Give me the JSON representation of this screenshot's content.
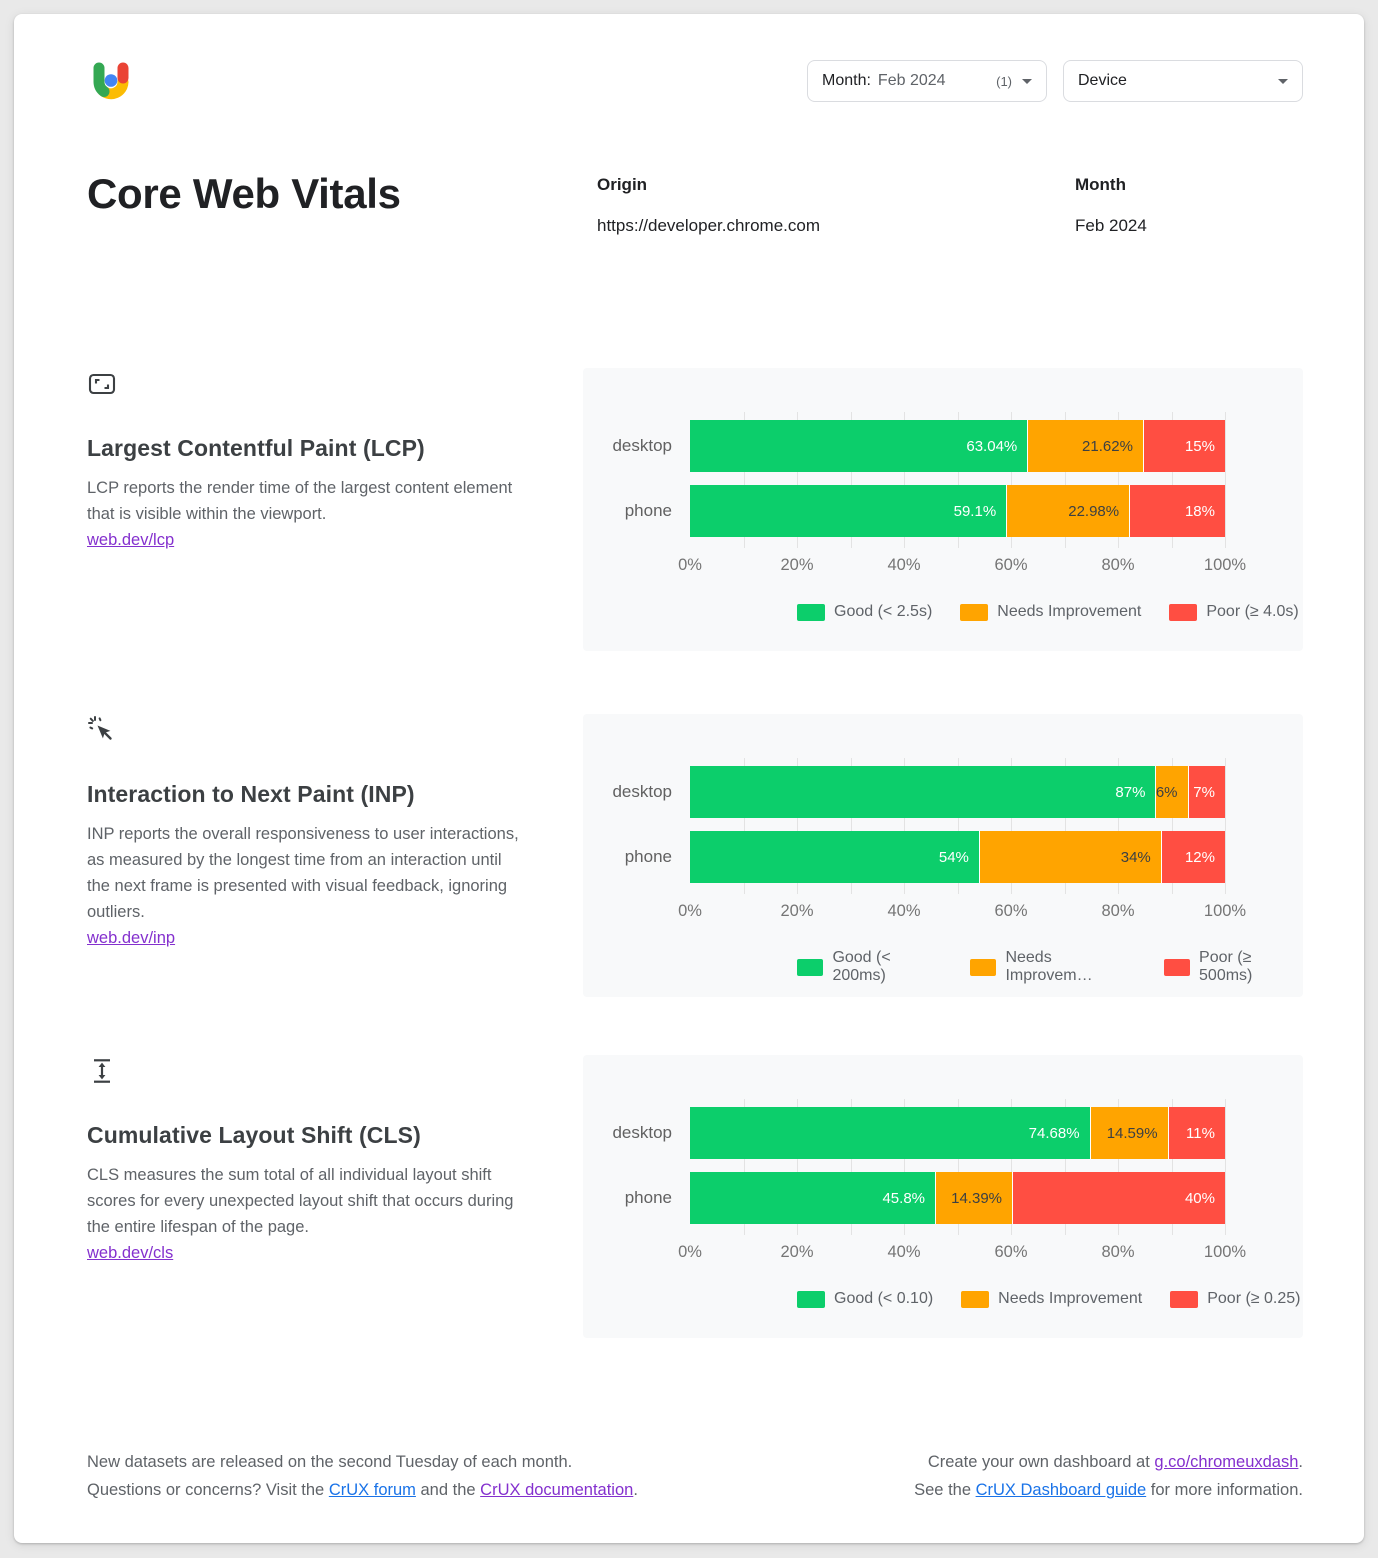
{
  "colors": {
    "good": "#0cce6b",
    "needs_improvement": "#ffa400",
    "poor": "#ff4e42",
    "link_blue": "#1a73e8",
    "link_purple": "#8430ce"
  },
  "header": {
    "month_filter": {
      "label": "Month:",
      "value": "Feb 2024",
      "count": "(1)"
    },
    "device_filter": {
      "label": "Device"
    },
    "title": "Core Web Vitals",
    "origin": {
      "label": "Origin",
      "value": "https://developer.chrome.com"
    },
    "month": {
      "label": "Month",
      "value": "Feb 2024"
    }
  },
  "sections": [
    {
      "title": "Largest Contentful Paint (LCP)",
      "description": "LCP reports the render time of the largest content element that is visible within the viewport.",
      "link": "web.dev/lcp"
    },
    {
      "title": "Interaction to Next Paint (INP)",
      "description": "INP reports the overall responsiveness to user interactions, as measured by the longest time from an interaction until the next frame is presented with visual feedback, ignoring outliers.",
      "link": "web.dev/inp"
    },
    {
      "title": "Cumulative Layout Shift (CLS)",
      "description": "CLS measures the sum total of all individual layout shift scores for every unexpected layout shift that occurs during the entire lifespan of the page.",
      "link": "web.dev/cls"
    }
  ],
  "chart_data": [
    {
      "type": "bar",
      "orientation": "horizontal",
      "stacked": true,
      "metric": "LCP",
      "categories": [
        "desktop",
        "phone"
      ],
      "series": [
        {
          "name": "Good",
          "legend_label": "Good (< 2.5s)",
          "color": "#0cce6b",
          "label_color": "#ffffff",
          "values": [
            63.04,
            59.1
          ],
          "labels": [
            "63.04%",
            "59.1%"
          ]
        },
        {
          "name": "Needs Improvement",
          "legend_label": "Needs Improvement",
          "color": "#ffa400",
          "label_color": "#3c4043",
          "values": [
            21.62,
            22.98
          ],
          "labels": [
            "21.62%",
            "22.98%"
          ]
        },
        {
          "name": "Poor",
          "legend_label": "Poor (≥ 4.0s)",
          "color": "#ff4e42",
          "label_color": "#ffffff",
          "values": [
            15.34,
            17.92
          ],
          "labels": [
            "15%",
            "18%"
          ]
        }
      ],
      "x_ticks": [
        "0%",
        "20%",
        "40%",
        "60%",
        "80%",
        "100%"
      ],
      "xlim": [
        0,
        100
      ],
      "grid_step": 10,
      "legend_position": "bottom"
    },
    {
      "type": "bar",
      "orientation": "horizontal",
      "stacked": true,
      "metric": "INP",
      "categories": [
        "desktop",
        "phone"
      ],
      "series": [
        {
          "name": "Good",
          "legend_label": "Good (< 200ms)",
          "color": "#0cce6b",
          "label_color": "#ffffff",
          "values": [
            87,
            54
          ],
          "labels": [
            "87%",
            "54%"
          ]
        },
        {
          "name": "Needs Improvement",
          "legend_label": "Needs Improvem…",
          "color": "#ffa400",
          "label_color": "#3c4043",
          "values": [
            6,
            34
          ],
          "labels": [
            "6%",
            "34%"
          ]
        },
        {
          "name": "Poor",
          "legend_label": "Poor (≥ 500ms)",
          "color": "#ff4e42",
          "label_color": "#ffffff",
          "values": [
            7,
            12
          ],
          "labels": [
            "7%",
            "12%"
          ]
        }
      ],
      "x_ticks": [
        "0%",
        "20%",
        "40%",
        "60%",
        "80%",
        "100%"
      ],
      "xlim": [
        0,
        100
      ],
      "grid_step": 10,
      "legend_position": "bottom"
    },
    {
      "type": "bar",
      "orientation": "horizontal",
      "stacked": true,
      "metric": "CLS",
      "categories": [
        "desktop",
        "phone"
      ],
      "series": [
        {
          "name": "Good",
          "legend_label": "Good (< 0.10)",
          "color": "#0cce6b",
          "label_color": "#ffffff",
          "values": [
            74.68,
            45.8
          ],
          "labels": [
            "74.68%",
            "45.8%"
          ]
        },
        {
          "name": "Needs Improvement",
          "legend_label": "Needs Improvement",
          "color": "#ffa400",
          "label_color": "#3c4043",
          "values": [
            14.59,
            14.39
          ],
          "labels": [
            "14.59%",
            "14.39%"
          ]
        },
        {
          "name": "Poor",
          "legend_label": "Poor (≥ 0.25)",
          "color": "#ff4e42",
          "label_color": "#ffffff",
          "values": [
            10.73,
            39.81
          ],
          "labels": [
            "11%",
            "40%"
          ]
        }
      ],
      "x_ticks": [
        "0%",
        "20%",
        "40%",
        "60%",
        "80%",
        "100%"
      ],
      "xlim": [
        0,
        100
      ],
      "grid_step": 10,
      "legend_position": "bottom"
    }
  ],
  "footer": {
    "left": {
      "line1": "New datasets are released on the second Tuesday of each month.",
      "line2_prefix": "Questions or concerns? Visit the ",
      "forum_link": "CrUX forum",
      "line2_mid": " and the ",
      "docs_link": "CrUX documentation",
      "line2_suffix": "."
    },
    "right": {
      "line1_prefix": "Create your own dashboard at ",
      "dash_link": "g.co/chromeuxdash",
      "line1_suffix": ".",
      "line2_prefix": "See the ",
      "guide_link": "CrUX Dashboard guide",
      "line2_suffix": " for more information."
    }
  }
}
